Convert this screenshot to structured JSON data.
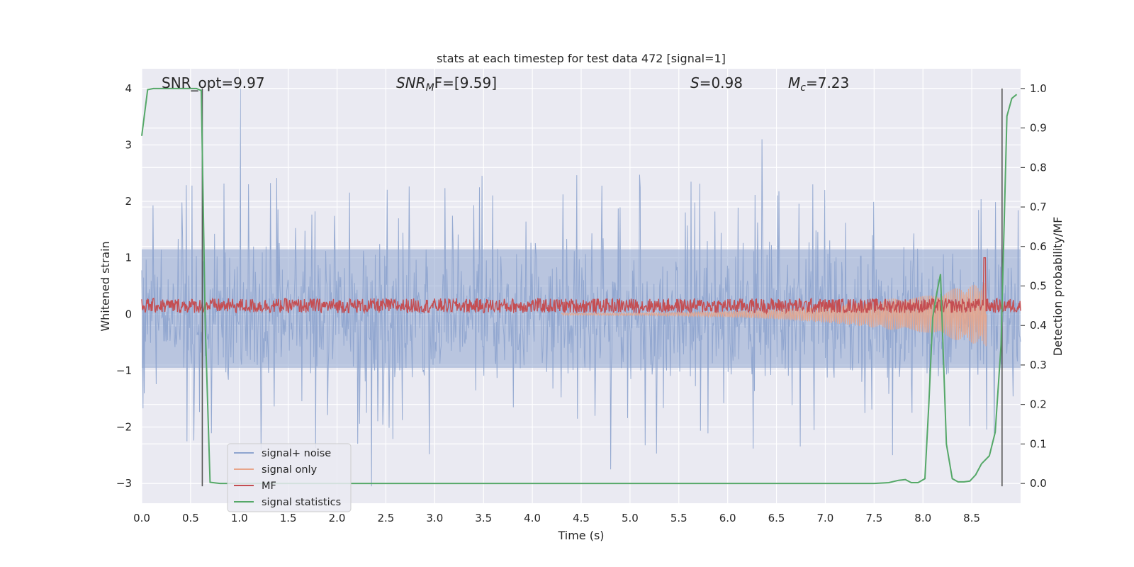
{
  "chart_data": {
    "type": "line",
    "title": "stats at each timestep for test data 472 [signal=1]",
    "xlabel": "Time (s)",
    "ylabel": "Whitened strain",
    "ylabel_right": "Detection probability/MF",
    "xlim": [
      0.0,
      9.0
    ],
    "ylim": [
      -3.35,
      4.35
    ],
    "ylim_right": [
      -0.05,
      1.05
    ],
    "xticks": [
      "0.0",
      "0.5",
      "1.0",
      "1.5",
      "2.0",
      "2.5",
      "3.0",
      "3.5",
      "4.0",
      "4.5",
      "5.0",
      "5.5",
      "6.0",
      "6.5",
      "7.0",
      "7.5",
      "8.0",
      "8.5"
    ],
    "yticks_left": [
      "−3",
      "−2",
      "−1",
      "0",
      "1",
      "2",
      "3",
      "4"
    ],
    "yticks_right": [
      "0.0",
      "0.1",
      "0.2",
      "0.3",
      "0.4",
      "0.5",
      "0.6",
      "0.7",
      "0.8",
      "0.9",
      "1.0"
    ],
    "grid": true,
    "legend_position": "lower-left",
    "annotations": {
      "snr_opt": "SNR_opt=9.97",
      "snr_mf_label": "SNR",
      "snr_mf_sub": "M",
      "snr_mf_rest": "F=[9.59]",
      "s_label": "S",
      "s_rest": "=0.98",
      "mc_label": "M",
      "mc_sub": "c",
      "mc_rest": "=7.23"
    },
    "vertical_lines_x": [
      0.62,
      8.81
    ],
    "series": [
      {
        "name": "signal+ noise",
        "color": "#8fa5cf",
        "noise_band": [
          -1.3,
          1.6
        ],
        "spikes": [
          [
            1.01,
            4.0
          ],
          [
            2.35,
            -3.05
          ],
          [
            6.35,
            3.1
          ],
          [
            4.8,
            -2.75
          ]
        ]
      },
      {
        "name": "signal only",
        "color": "#e8a58a",
        "chirp_start": 4.3,
        "chirp_end": 8.65,
        "peak_amplitude": 0.55
      },
      {
        "name": "MF",
        "color": "#c44e52",
        "baseline": 0.15,
        "jitter": 0.13,
        "peak": [
          8.63,
          1.0
        ]
      },
      {
        "name": "signal statistics",
        "color": "#55a868",
        "x": [
          0.0,
          0.06,
          0.12,
          0.2,
          0.3,
          0.4,
          0.5,
          0.56,
          0.61,
          0.65,
          0.7,
          0.8,
          0.9,
          1.5,
          2.5,
          3.5,
          4.5,
          5.5,
          6.5,
          7.5,
          7.65,
          7.75,
          7.82,
          7.88,
          7.95,
          8.02,
          8.06,
          8.1,
          8.14,
          8.18,
          8.24,
          8.3,
          8.36,
          8.42,
          8.48,
          8.54,
          8.6,
          8.68,
          8.74,
          8.8,
          8.86,
          8.91,
          8.96
        ],
        "y": [
          0.88,
          0.997,
          1.0,
          1.0,
          1.0,
          1.0,
          1.0,
          1.0,
          0.995,
          0.4,
          0.003,
          0.0,
          0.0,
          0.0,
          0.0,
          0.0,
          0.0,
          0.0,
          0.0,
          0.0,
          0.002,
          0.008,
          0.01,
          0.002,
          0.002,
          0.012,
          0.2,
          0.42,
          0.48,
          0.53,
          0.1,
          0.012,
          0.004,
          0.004,
          0.006,
          0.022,
          0.05,
          0.07,
          0.13,
          0.35,
          0.93,
          0.975,
          0.985
        ]
      }
    ]
  }
}
